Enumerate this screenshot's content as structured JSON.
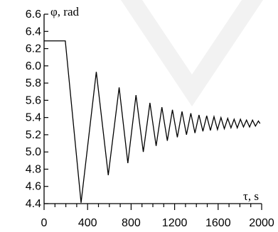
{
  "chart_data": {
    "type": "line",
    "title": "",
    "ylabel": "φ, rad",
    "xlabel": "τ, s",
    "xlim": [
      0,
      2000
    ],
    "ylim": [
      4.4,
      6.6
    ],
    "x_ticks": [
      0,
      400,
      800,
      1200,
      1600,
      2000
    ],
    "x_tick_labels": [
      "0",
      "400",
      "800",
      "1200",
      "1600",
      "2000"
    ],
    "x_minor_step": 100,
    "y_ticks": [
      4.4,
      4.6,
      4.8,
      5.0,
      5.2,
      5.4,
      5.6,
      5.8,
      6.0,
      6.2,
      6.4,
      6.6
    ],
    "y_tick_labels": [
      "4.4",
      "4.6",
      "4.8",
      "5.0",
      "5.2",
      "5.4",
      "5.6",
      "5.8",
      "6.0",
      "6.2",
      "6.4",
      "6.6"
    ],
    "grid": false,
    "legend": "none",
    "line_color": "#000000",
    "series": [
      {
        "x": [
          0,
          195,
          340,
          480,
          590,
          690,
          770,
          845,
          912,
          973,
          1030,
          1083,
          1133,
          1180,
          1225,
          1268,
          1309,
          1349,
          1387,
          1424,
          1460,
          1495,
          1529,
          1562,
          1594,
          1626,
          1657,
          1688,
          1718,
          1747,
          1776,
          1805,
          1833,
          1861,
          1889,
          1916,
          1943,
          1970,
          1985
        ],
        "y": [
          6.29,
          6.29,
          4.41,
          5.93,
          4.73,
          5.75,
          4.87,
          5.66,
          5.0,
          5.57,
          5.07,
          5.52,
          5.13,
          5.49,
          5.17,
          5.47,
          5.2,
          5.45,
          5.22,
          5.43,
          5.24,
          5.42,
          5.25,
          5.41,
          5.26,
          5.4,
          5.27,
          5.39,
          5.28,
          5.38,
          5.28,
          5.38,
          5.29,
          5.37,
          5.29,
          5.37,
          5.3,
          5.36,
          5.33
        ]
      }
    ]
  },
  "watermark_icon": "triangle-watermark-icon"
}
